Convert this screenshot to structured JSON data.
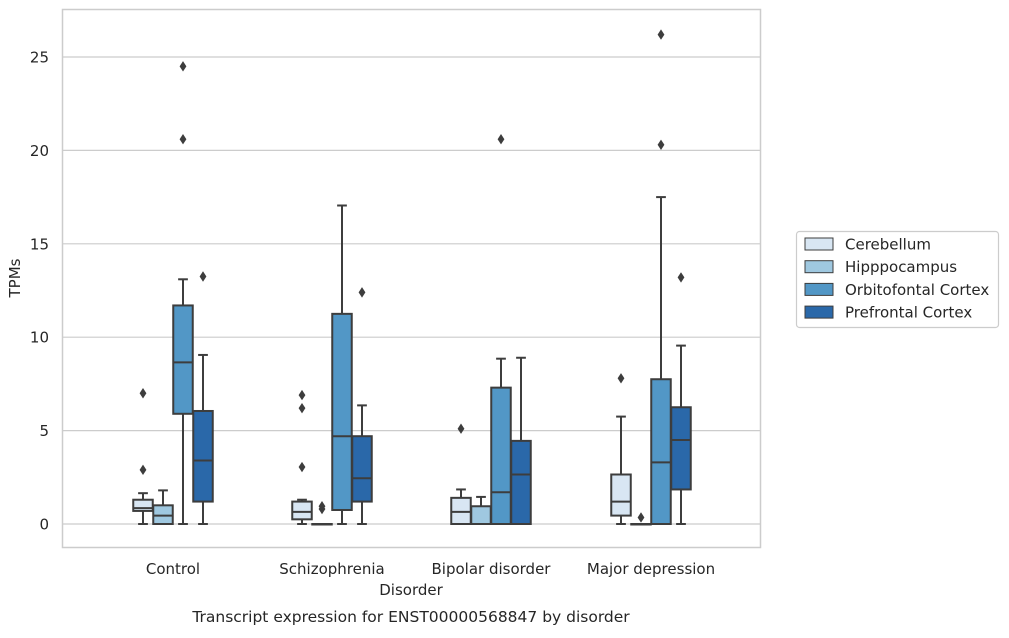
{
  "chart_data": {
    "type": "box",
    "title": "",
    "caption": "Transcript expression for ENST00000568847 by disorder",
    "xlabel": "Disorder",
    "ylabel": "TPMs",
    "ylim": [
      -1.2,
      27.3
    ],
    "yticks": [
      0,
      5,
      10,
      15,
      20,
      25
    ],
    "grid": "horizontal",
    "legend_position": "right",
    "categories": [
      "Control",
      "Schizophrenia",
      "Bipolar disorder",
      "Major depression"
    ],
    "series": [
      {
        "name": "Cerebellum",
        "color": "#d8e6f3",
        "boxes": [
          {
            "whisker_low": 0.0,
            "q1": 0.7,
            "median": 0.85,
            "q3": 1.3,
            "whisker_high": 1.65,
            "outliers": [
              2.9,
              7.0
            ]
          },
          {
            "whisker_low": 0.0,
            "q1": 0.25,
            "median": 0.65,
            "q3": 1.2,
            "whisker_high": 1.3,
            "outliers": [
              3.05,
              6.2,
              6.9
            ]
          },
          {
            "whisker_low": 0.0,
            "q1": 0.0,
            "median": 0.65,
            "q3": 1.4,
            "whisker_high": 1.85,
            "outliers": [
              5.1
            ]
          },
          {
            "whisker_low": 0.0,
            "q1": 0.45,
            "median": 1.2,
            "q3": 2.65,
            "whisker_high": 5.75,
            "outliers": [
              7.8
            ]
          }
        ]
      },
      {
        "name": "Hipppocampus",
        "color": "#9fc8e0",
        "boxes": [
          {
            "whisker_low": 0.0,
            "q1": 0.0,
            "median": 0.45,
            "q3": 1.0,
            "whisker_high": 1.8,
            "outliers": []
          },
          {
            "whisker_low": 0.0,
            "q1": 0.0,
            "median": 0.0,
            "q3": 0.0,
            "whisker_high": 0.0,
            "outliers": [
              0.8,
              0.95
            ]
          },
          {
            "whisker_low": 0.0,
            "q1": 0.0,
            "median": 0.0,
            "q3": 0.95,
            "whisker_high": 1.45,
            "outliers": []
          },
          {
            "whisker_low": 0.0,
            "q1": 0.0,
            "median": 0.0,
            "q3": 0.0,
            "whisker_high": 0.0,
            "outliers": [
              0.35
            ]
          }
        ]
      },
      {
        "name": "Orbitofontal Cortex",
        "color": "#5297c6",
        "boxes": [
          {
            "whisker_low": 0.0,
            "q1": 5.9,
            "median": 8.65,
            "q3": 11.7,
            "whisker_high": 13.1,
            "outliers": [
              20.6,
              24.5
            ]
          },
          {
            "whisker_low": 0.0,
            "q1": 0.75,
            "median": 4.7,
            "q3": 11.25,
            "whisker_high": 17.05,
            "outliers": []
          },
          {
            "whisker_low": 0.0,
            "q1": 0.0,
            "median": 1.7,
            "q3": 7.3,
            "whisker_high": 8.85,
            "outliers": [
              20.6
            ]
          },
          {
            "whisker_low": 0.0,
            "q1": 0.0,
            "median": 3.3,
            "q3": 7.75,
            "whisker_high": 17.5,
            "outliers": [
              20.3,
              26.2
            ]
          }
        ]
      },
      {
        "name": "Prefrontal Cortex",
        "color": "#2a68a9",
        "boxes": [
          {
            "whisker_low": 0.0,
            "q1": 1.2,
            "median": 3.4,
            "q3": 6.05,
            "whisker_high": 9.05,
            "outliers": [
              13.25
            ]
          },
          {
            "whisker_low": 0.0,
            "q1": 1.2,
            "median": 2.45,
            "q3": 4.7,
            "whisker_high": 6.35,
            "outliers": [
              12.4
            ]
          },
          {
            "whisker_low": 0.0,
            "q1": 0.0,
            "median": 2.65,
            "q3": 4.45,
            "whisker_high": 8.9,
            "outliers": []
          },
          {
            "whisker_low": 0.0,
            "q1": 1.85,
            "median": 4.5,
            "q3": 6.25,
            "whisker_high": 9.55,
            "outliers": [
              13.2
            ]
          }
        ]
      }
    ]
  }
}
